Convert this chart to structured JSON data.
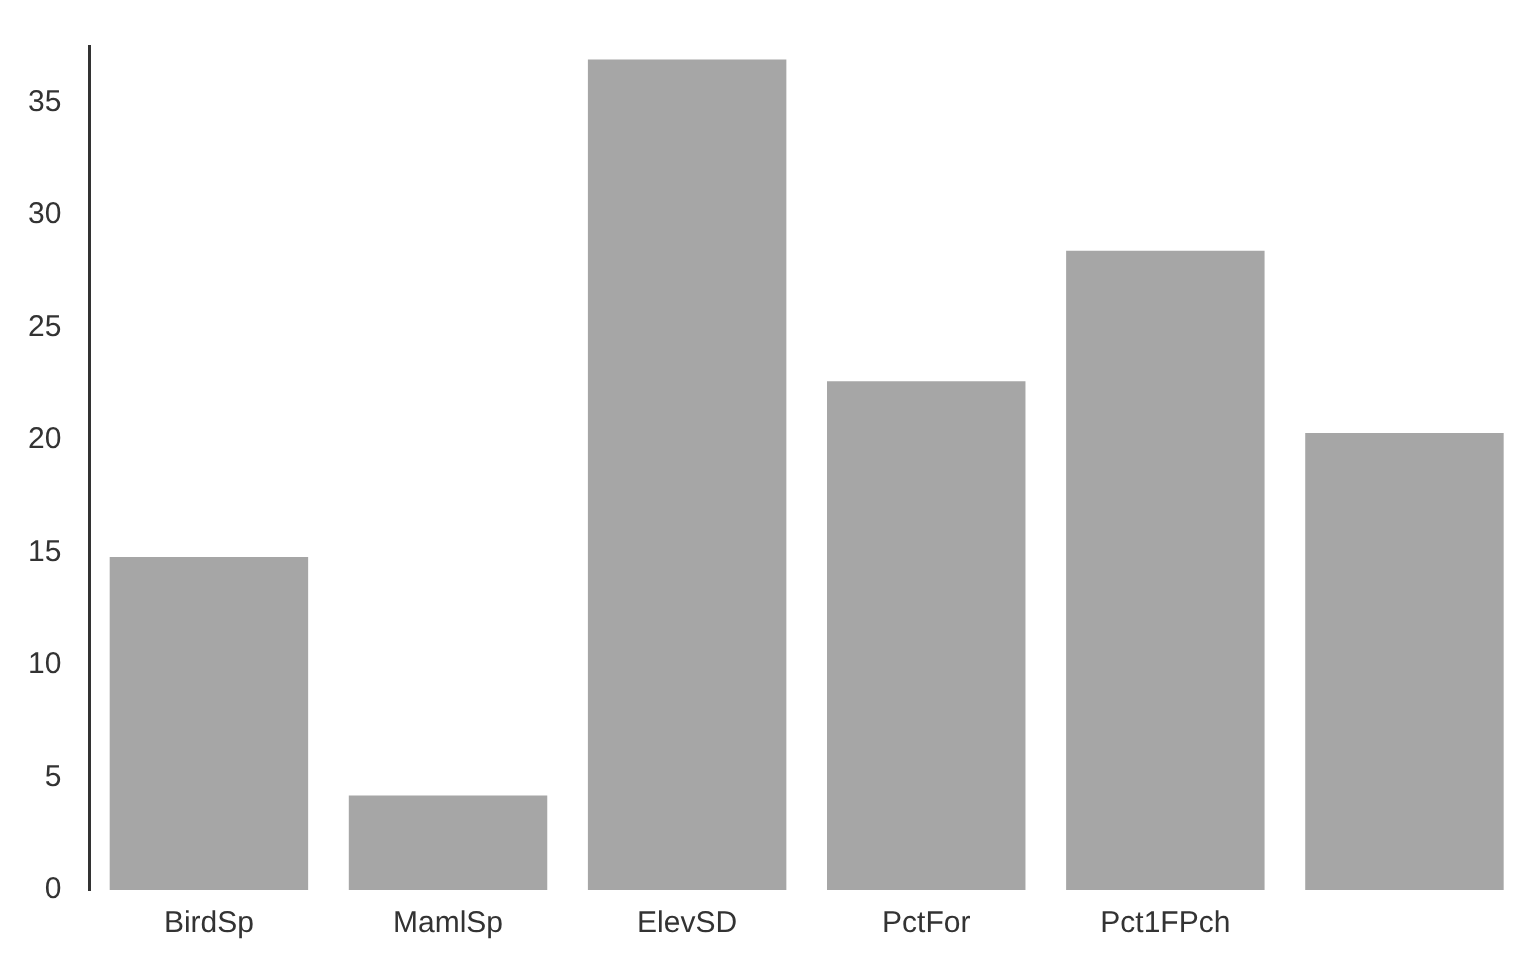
{
  "chart_data": {
    "type": "bar",
    "categories": [
      "BirdSp",
      "MamlSp",
      "ElevSD",
      "PctFor",
      "Pct1FPch",
      null
    ],
    "values": [
      14.8,
      4.2,
      36.9,
      22.6,
      28.4,
      20.3
    ],
    "color": "#a6a6a6",
    "ylim": [
      0,
      37.5
    ],
    "yticks": [
      0,
      5,
      10,
      15,
      20,
      25,
      30,
      35
    ],
    "grid": false,
    "legend": false
  }
}
